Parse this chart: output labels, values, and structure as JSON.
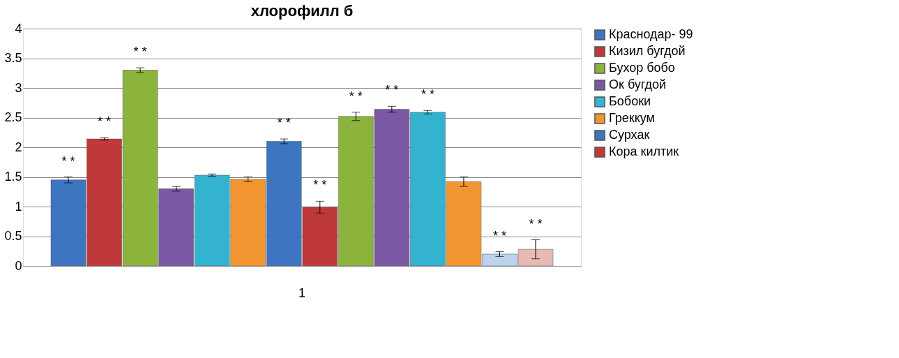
{
  "chart_data": {
    "type": "bar",
    "title": "хлорофилл б",
    "categories": [
      "1"
    ],
    "series": [
      {
        "name": "Краснодар- 99",
        "color": "#3d75c0",
        "values": [
          1.45
        ],
        "errors": [
          0.05
        ],
        "value_labels": [
          "* *"
        ]
      },
      {
        "name": "Кизил бугдой",
        "color": "#c0393a",
        "values": [
          2.14
        ],
        "errors": [
          0.02
        ],
        "value_labels": [
          "* *"
        ]
      },
      {
        "name": "Бухор бобо",
        "color": "#8cb43c",
        "values": [
          3.3
        ],
        "errors": [
          0.04
        ],
        "value_labels": [
          "* *"
        ]
      },
      {
        "name": "Ок бугдой",
        "color": "#7a58a3",
        "values": [
          1.3
        ],
        "errors": [
          0.04
        ],
        "value_labels": [
          null
        ]
      },
      {
        "name": "Бобоки",
        "color": "#33b3d0",
        "values": [
          1.53
        ],
        "errors": [
          0.02
        ],
        "value_labels": [
          null
        ]
      },
      {
        "name": "Греккум",
        "color": "#f39530",
        "values": [
          1.46
        ],
        "errors": [
          0.04
        ],
        "value_labels": [
          null
        ]
      },
      {
        "name": "Сурхак",
        "color": "#3d75c0",
        "values": [
          2.1
        ],
        "errors": [
          0.04
        ],
        "value_labels": [
          "* *"
        ]
      },
      {
        "name": "Кора килтик",
        "color": "#c0393a",
        "values": [
          0.99
        ],
        "errors": [
          0.1
        ],
        "value_labels": [
          "* *"
        ]
      },
      {
        "color": "#8cb43c",
        "values": [
          2.52
        ],
        "errors": [
          0.07
        ],
        "value_labels": [
          "* *"
        ]
      },
      {
        "color": "#7a58a3",
        "values": [
          2.64
        ],
        "errors": [
          0.05
        ],
        "value_labels": [
          "* *"
        ]
      },
      {
        "color": "#33b3d0",
        "values": [
          2.59
        ],
        "errors": [
          0.03
        ],
        "value_labels": [
          "* *"
        ]
      },
      {
        "color": "#f39530",
        "values": [
          1.42
        ],
        "errors": [
          0.08
        ],
        "value_labels": [
          null
        ]
      },
      {
        "color": "#bcd3ee",
        "values": [
          0.2
        ],
        "errors": [
          0.04
        ],
        "value_labels": [
          "* *"
        ]
      },
      {
        "color": "#e8b9b5",
        "values": [
          0.28
        ],
        "errors": [
          0.16
        ],
        "value_labels": [
          "* *"
        ]
      }
    ],
    "ylim": [
      0,
      4
    ],
    "yticks": [
      0,
      0.5,
      1,
      1.5,
      2,
      2.5,
      3,
      3.5,
      4
    ],
    "grid": "y",
    "legend": "right"
  }
}
